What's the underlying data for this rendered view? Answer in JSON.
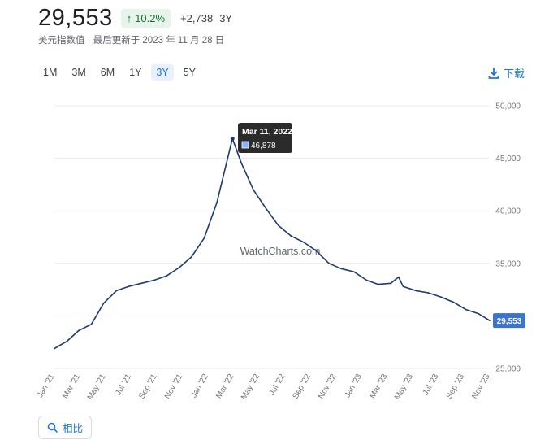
{
  "header": {
    "value": "29,553",
    "change_pct": "10.2%",
    "change_abs": "+2,738",
    "period": "3Y",
    "subtitle": "美元指数值 · 最后更新于 2023 年 11 月 28 日"
  },
  "range_buttons": [
    "1M",
    "3M",
    "6M",
    "1Y",
    "3Y",
    "5Y"
  ],
  "active_range": "3Y",
  "download_label": "下载",
  "compare_label": "相比",
  "icons": {
    "arrow": "arrow-up-icon",
    "download": "download-icon",
    "search": "search-icon"
  },
  "colors": {
    "line": "#1f3a6e",
    "badge_bg": "#e6f4ea",
    "badge_text": "#137333",
    "accent": "#1a73e8",
    "current_label": "#3b73d1"
  },
  "chart_data": {
    "type": "line",
    "watermark": "WatchCharts.com",
    "ylim": [
      25000,
      50000
    ],
    "y_ticks": [
      "50,000",
      "45,000",
      "40,000",
      "35,000",
      "30,000",
      "25,000"
    ],
    "x_ticks": [
      "Jan '21",
      "Mar '21",
      "May '21",
      "Jul '21",
      "Sep '21",
      "Nov '21",
      "Jan '22",
      "Mar '22",
      "May '22",
      "Jul '22",
      "Sep '22",
      "Nov '22",
      "Jan '23",
      "Mar '23",
      "May '23",
      "Jul '23",
      "Sep '23",
      "Nov '23"
    ],
    "tooltip": {
      "date": "Mar 11, 2022",
      "value": "46,878"
    },
    "current_label": "29,553",
    "series": [
      {
        "x": [
          "2021-01-01",
          "2021-02-01",
          "2021-03-01",
          "2021-04-01",
          "2021-05-01",
          "2021-06-01",
          "2021-07-01",
          "2021-08-01",
          "2021-09-01",
          "2021-10-01",
          "2021-11-01",
          "2021-12-01",
          "2022-01-01",
          "2022-02-01",
          "2022-03-11",
          "2022-04-01",
          "2022-05-01",
          "2022-06-01",
          "2022-07-01",
          "2022-08-01",
          "2022-09-01",
          "2022-10-01",
          "2022-11-01",
          "2022-12-01",
          "2023-01-01",
          "2023-02-01",
          "2023-03-01",
          "2023-04-01",
          "2023-04-20",
          "2023-05-01",
          "2023-06-01",
          "2023-07-01",
          "2023-08-01",
          "2023-09-01",
          "2023-10-01",
          "2023-11-01",
          "2023-11-28"
        ],
        "y": [
          26900,
          27600,
          28600,
          29200,
          31200,
          32400,
          32800,
          33100,
          33400,
          33800,
          34600,
          35600,
          37400,
          40800,
          46878,
          44600,
          42000,
          40200,
          38600,
          37600,
          37000,
          36200,
          35000,
          34500,
          34200,
          33400,
          33000,
          33100,
          33700,
          32800,
          32400,
          32200,
          31800,
          31300,
          30600,
          30200,
          29553
        ]
      }
    ]
  }
}
